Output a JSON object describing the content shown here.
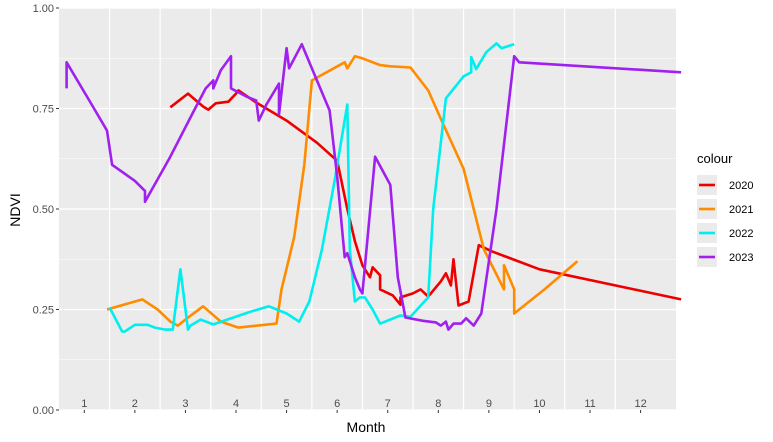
{
  "chart_data": {
    "type": "line",
    "xlabel": "Month",
    "ylabel": "NDVI",
    "legend_title": "colour",
    "legend_position": "right",
    "grid": true,
    "xlim": [
      0,
      12.2
    ],
    "ylim": [
      0,
      1
    ],
    "y_ticks": [
      "0.00",
      "0.25",
      "0.50",
      "0.75",
      "1.00"
    ],
    "x_tick_labels": [
      "1",
      "2",
      "3",
      "4",
      "5",
      "6",
      "7",
      "8",
      "9",
      "10",
      "11",
      "12"
    ],
    "colors": {
      "2020": "#ee0000",
      "2021": "#ff8c00",
      "2022": "#00eeee",
      "2023": "#a020f0"
    },
    "series": [
      {
        "name": "2020",
        "points": [
          [
            2.2,
            0.753
          ],
          [
            2.55,
            0.787
          ],
          [
            2.85,
            0.755
          ],
          [
            2.95,
            0.747
          ],
          [
            3.1,
            0.763
          ],
          [
            3.35,
            0.767
          ],
          [
            3.5,
            0.787
          ],
          [
            3.55,
            0.795
          ],
          [
            3.9,
            0.765
          ],
          [
            4.5,
            0.72
          ],
          [
            5.1,
            0.665
          ],
          [
            5.5,
            0.62
          ],
          [
            5.7,
            0.5
          ],
          [
            5.85,
            0.42
          ],
          [
            6.0,
            0.36
          ],
          [
            6.15,
            0.33
          ],
          [
            6.2,
            0.355
          ],
          [
            6.35,
            0.335
          ],
          [
            6.35,
            0.3
          ],
          [
            6.6,
            0.285
          ],
          [
            6.75,
            0.262
          ],
          [
            6.75,
            0.28
          ],
          [
            7.0,
            0.29
          ],
          [
            7.15,
            0.3
          ],
          [
            7.3,
            0.282
          ],
          [
            7.55,
            0.32
          ],
          [
            7.65,
            0.34
          ],
          [
            7.75,
            0.31
          ],
          [
            7.8,
            0.375
          ],
          [
            7.9,
            0.26
          ],
          [
            8.1,
            0.27
          ],
          [
            8.3,
            0.41
          ],
          [
            8.55,
            0.395
          ],
          [
            9.5,
            0.35
          ],
          [
            12.3,
            0.275
          ]
        ]
      },
      {
        "name": "2021",
        "points": [
          [
            0.95,
            0.25
          ],
          [
            1.65,
            0.275
          ],
          [
            1.95,
            0.25
          ],
          [
            2.2,
            0.22
          ],
          [
            2.35,
            0.21
          ],
          [
            2.5,
            0.225
          ],
          [
            2.85,
            0.258
          ],
          [
            3.2,
            0.22
          ],
          [
            3.55,
            0.205
          ],
          [
            4.3,
            0.215
          ],
          [
            4.4,
            0.3
          ],
          [
            4.65,
            0.43
          ],
          [
            4.85,
            0.61
          ],
          [
            5.0,
            0.82
          ],
          [
            5.65,
            0.865
          ],
          [
            5.7,
            0.85
          ],
          [
            5.85,
            0.88
          ],
          [
            6.0,
            0.875
          ],
          [
            6.35,
            0.858
          ],
          [
            6.55,
            0.855
          ],
          [
            6.95,
            0.852
          ],
          [
            7.3,
            0.795
          ],
          [
            7.6,
            0.71
          ],
          [
            8.0,
            0.6
          ],
          [
            8.2,
            0.5
          ],
          [
            8.4,
            0.4
          ],
          [
            8.8,
            0.3
          ],
          [
            8.8,
            0.36
          ],
          [
            8.9,
            0.33
          ],
          [
            9.0,
            0.3
          ],
          [
            9.0,
            0.24
          ],
          [
            9.6,
            0.3
          ],
          [
            10.25,
            0.37
          ]
        ]
      },
      {
        "name": "2022",
        "points": [
          [
            1.0,
            0.255
          ],
          [
            1.25,
            0.195
          ],
          [
            1.3,
            0.195
          ],
          [
            1.5,
            0.212
          ],
          [
            1.75,
            0.212
          ],
          [
            1.9,
            0.205
          ],
          [
            2.1,
            0.2
          ],
          [
            2.25,
            0.2
          ],
          [
            2.4,
            0.35
          ],
          [
            2.55,
            0.2
          ],
          [
            2.6,
            0.21
          ],
          [
            2.8,
            0.225
          ],
          [
            3.05,
            0.213
          ],
          [
            3.8,
            0.245
          ],
          [
            4.15,
            0.258
          ],
          [
            4.5,
            0.24
          ],
          [
            4.75,
            0.22
          ],
          [
            4.95,
            0.27
          ],
          [
            5.2,
            0.4
          ],
          [
            5.45,
            0.57
          ],
          [
            5.7,
            0.76
          ],
          [
            5.75,
            0.4
          ],
          [
            5.85,
            0.27
          ],
          [
            5.95,
            0.28
          ],
          [
            6.05,
            0.28
          ],
          [
            6.2,
            0.25
          ],
          [
            6.35,
            0.215
          ],
          [
            6.75,
            0.235
          ],
          [
            6.95,
            0.232
          ],
          [
            7.3,
            0.28
          ],
          [
            7.4,
            0.5
          ],
          [
            7.65,
            0.775
          ],
          [
            8.0,
            0.83
          ],
          [
            8.15,
            0.84
          ],
          [
            8.15,
            0.878
          ],
          [
            8.25,
            0.848
          ],
          [
            8.45,
            0.89
          ],
          [
            8.65,
            0.912
          ],
          [
            8.75,
            0.9
          ],
          [
            9.0,
            0.91
          ]
        ]
      },
      {
        "name": "2023",
        "points": [
          [
            0.15,
            0.8
          ],
          [
            0.15,
            0.865
          ],
          [
            0.6,
            0.77
          ],
          [
            0.95,
            0.695
          ],
          [
            1.05,
            0.61
          ],
          [
            1.5,
            0.57
          ],
          [
            1.7,
            0.545
          ],
          [
            1.7,
            0.518
          ],
          [
            2.2,
            0.63
          ],
          [
            2.65,
            0.74
          ],
          [
            2.9,
            0.8
          ],
          [
            3.05,
            0.82
          ],
          [
            3.05,
            0.8
          ],
          [
            3.2,
            0.845
          ],
          [
            3.4,
            0.88
          ],
          [
            3.4,
            0.8
          ],
          [
            3.7,
            0.78
          ],
          [
            3.9,
            0.77
          ],
          [
            3.95,
            0.72
          ],
          [
            4.1,
            0.76
          ],
          [
            4.35,
            0.812
          ],
          [
            4.35,
            0.735
          ],
          [
            4.5,
            0.9
          ],
          [
            4.55,
            0.85
          ],
          [
            4.8,
            0.91
          ],
          [
            5.1,
            0.82
          ],
          [
            5.35,
            0.745
          ],
          [
            5.5,
            0.58
          ],
          [
            5.65,
            0.38
          ],
          [
            5.7,
            0.39
          ],
          [
            5.85,
            0.33
          ],
          [
            5.95,
            0.3
          ],
          [
            6.0,
            0.29
          ],
          [
            6.25,
            0.63
          ],
          [
            6.55,
            0.56
          ],
          [
            6.7,
            0.33
          ],
          [
            6.85,
            0.23
          ],
          [
            7.2,
            0.222
          ],
          [
            7.45,
            0.218
          ],
          [
            7.55,
            0.21
          ],
          [
            7.65,
            0.22
          ],
          [
            7.7,
            0.2
          ],
          [
            7.8,
            0.215
          ],
          [
            7.95,
            0.215
          ],
          [
            8.05,
            0.228
          ],
          [
            8.2,
            0.21
          ],
          [
            8.35,
            0.24
          ],
          [
            8.65,
            0.5
          ],
          [
            9.0,
            0.88
          ],
          [
            9.1,
            0.865
          ],
          [
            12.3,
            0.84
          ]
        ]
      }
    ]
  }
}
